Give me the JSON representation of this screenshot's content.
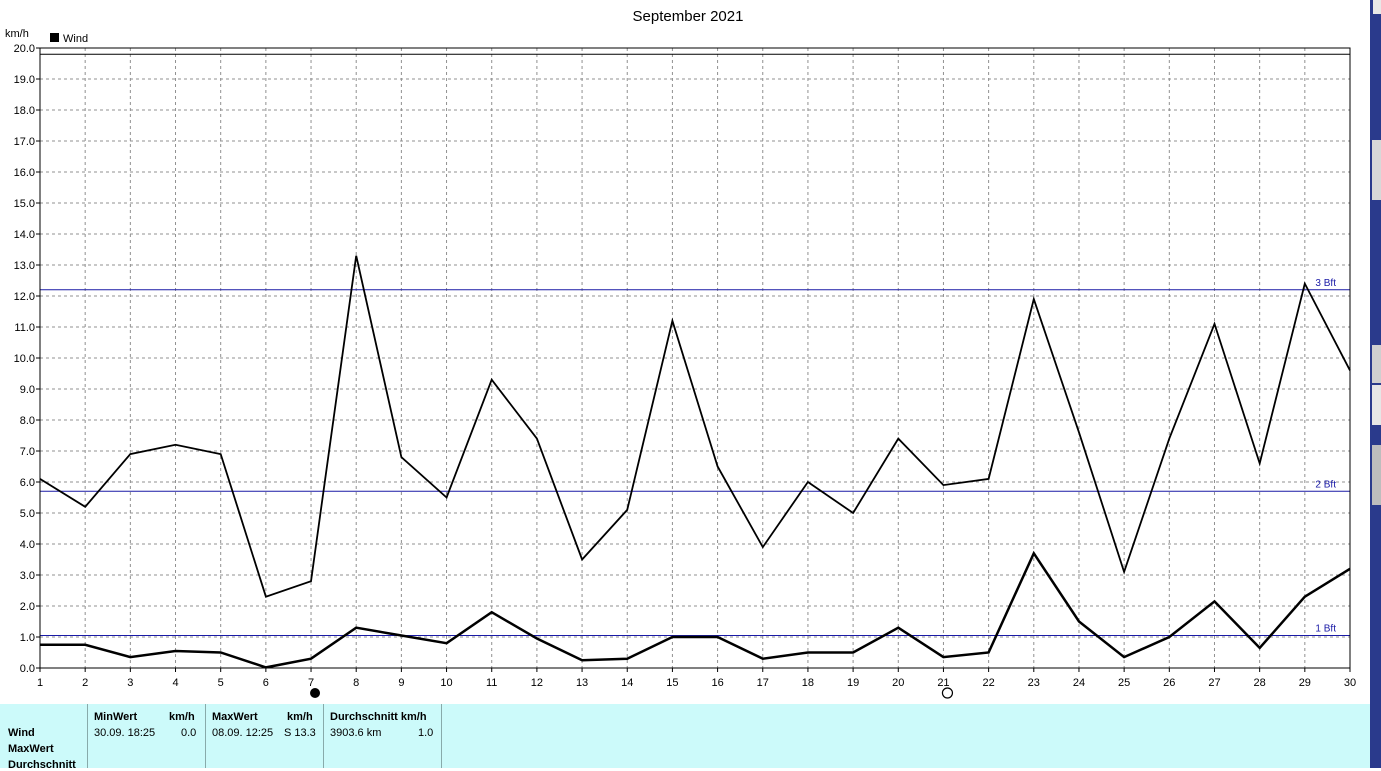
{
  "window": {
    "title": "September 2021"
  },
  "chart_data": {
    "type": "line",
    "title": "September 2021",
    "ylabel": "km/h",
    "xlabel": "",
    "ylim": [
      0,
      20
    ],
    "xlim": [
      1,
      30
    ],
    "grid": true,
    "legend": "top-left",
    "x": [
      1,
      2,
      3,
      4,
      5,
      6,
      7,
      8,
      9,
      10,
      11,
      12,
      13,
      14,
      15,
      16,
      17,
      18,
      19,
      20,
      21,
      22,
      23,
      24,
      25,
      26,
      27,
      28,
      29,
      30
    ],
    "y_ticks": [
      "0.0",
      "1.0",
      "2.0",
      "3.0",
      "4.0",
      "5.0",
      "6.0",
      "7.0",
      "8.0",
      "9.0",
      "10.0",
      "11.0",
      "12.0",
      "13.0",
      "14.0",
      "15.0",
      "16.0",
      "17.0",
      "18.0",
      "19.0",
      "20.0"
    ],
    "x_ticks": [
      "1",
      "2",
      "3",
      "4",
      "5",
      "6",
      "7",
      "8",
      "9",
      "10",
      "11",
      "12",
      "13",
      "14",
      "15",
      "16",
      "17",
      "18",
      "19",
      "20",
      "21",
      "22",
      "23",
      "24",
      "25",
      "26",
      "27",
      "28",
      "29",
      "30"
    ],
    "series": [
      {
        "name": "Wind",
        "color": "#000000",
        "values": [
          0.75,
          0.75,
          0.35,
          0.55,
          0.5,
          0.02,
          0.3,
          1.3,
          1.05,
          0.8,
          1.8,
          0.95,
          0.25,
          0.3,
          1.0,
          1.0,
          0.3,
          0.5,
          0.5,
          1.3,
          0.35,
          0.5,
          3.7,
          1.5,
          0.35,
          1.0,
          2.15,
          0.65,
          2.3,
          3.2
        ]
      },
      {
        "color": "#000000",
        "values": [
          6.1,
          5.2,
          6.9,
          7.2,
          6.9,
          2.3,
          2.8,
          13.3,
          6.8,
          5.5,
          9.3,
          7.4,
          3.5,
          5.1,
          11.2,
          6.5,
          3.9,
          6.0,
          5.0,
          7.4,
          5.9,
          6.1,
          11.9,
          7.6,
          3.1,
          7.4,
          11.1,
          6.6,
          12.4,
          9.6
        ]
      }
    ],
    "reference_lines": [
      {
        "label": "1 Bft",
        "value": 1.05,
        "color": "#1a1aa6"
      },
      {
        "label": "2 Bft",
        "value": 5.7,
        "color": "#1a1aa6"
      },
      {
        "label": "3 Bft",
        "value": 12.2,
        "color": "#1a1aa6"
      },
      {
        "label": "",
        "value": 19.8,
        "color": "#000000"
      }
    ],
    "moon_markers": [
      {
        "day": 7,
        "phase": "new-moon"
      },
      {
        "day": 21,
        "phase": "full-moon"
      }
    ]
  },
  "stats": {
    "row_labels": [
      "Wind",
      "MaxWert",
      "Durchschnitt"
    ],
    "min": {
      "header": "MinWert",
      "unit": "km/h",
      "datetime": "30.09.  18:25",
      "value": "0.0"
    },
    "max": {
      "header": "MaxWert",
      "unit": "km/h",
      "datetime": "08.09.  12:25",
      "value": "S 13.3"
    },
    "avg": {
      "header": "Durchschnitt km/h",
      "distance": "3903.6 km",
      "value": "1.0"
    }
  }
}
